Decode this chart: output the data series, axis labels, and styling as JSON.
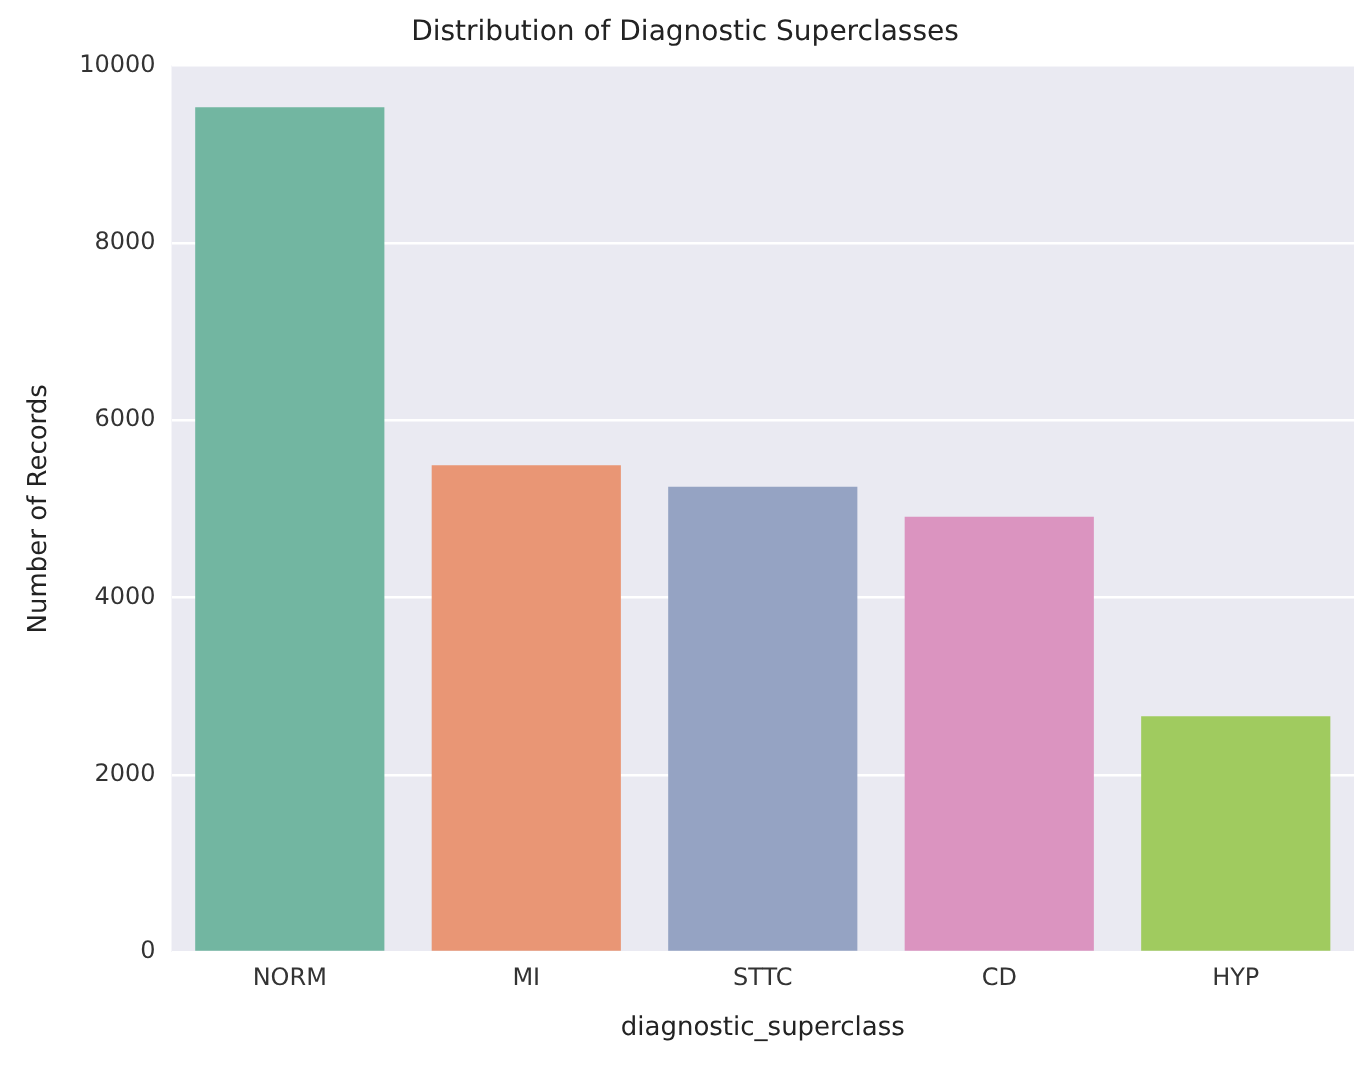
{
  "chart_data": {
    "type": "bar",
    "title": "Distribution of Diagnostic Superclasses",
    "xlabel": "diagnostic_superclass",
    "ylabel": "Number of Records",
    "categories": [
      "NORM",
      "MI",
      "STTC",
      "CD",
      "HYP"
    ],
    "values": [
      9530,
      5490,
      5250,
      4910,
      2660
    ],
    "colors": [
      "#72b6a1",
      "#e99675",
      "#95a3c3",
      "#db94c0",
      "#a0cb5f"
    ],
    "ylim": [
      0,
      10000
    ],
    "yticks": [
      0,
      2000,
      4000,
      6000,
      8000,
      10000
    ],
    "grid": "y",
    "legend": false
  }
}
